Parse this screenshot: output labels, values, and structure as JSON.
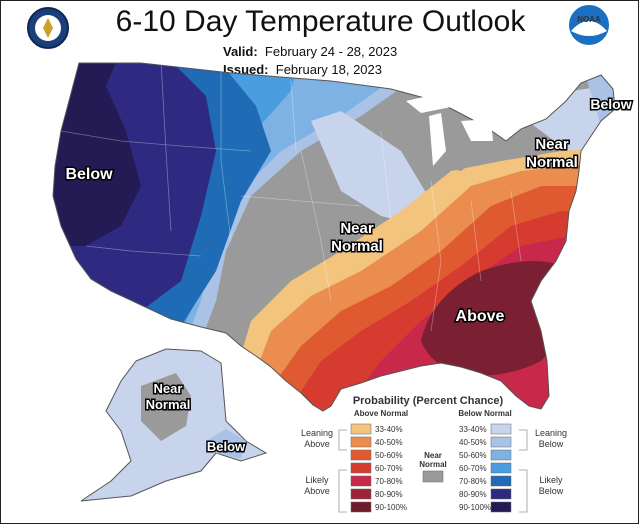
{
  "header": {
    "title": "6-10 Day Temperature Outlook",
    "valid_label": "Valid:",
    "valid_value": "February 24 - 28, 2023",
    "issued_label": "Issued:",
    "issued_value": "February 18, 2023"
  },
  "logos": {
    "left": "doc-seal-icon",
    "right": "noaa-logo-icon",
    "right_text": "NOAA"
  },
  "map_labels": {
    "below_west": "Below",
    "near_normal_central": [
      "Near",
      "Normal"
    ],
    "near_normal_ne": [
      "Near",
      "Normal"
    ],
    "below_ne": "Below",
    "above_se": "Above",
    "near_normal_alaska": [
      "Near",
      "Normal"
    ],
    "below_alaska": "Below"
  },
  "legend": {
    "title": "Probability (Percent Chance)",
    "above_header": "Above Normal",
    "below_header": "Below Normal",
    "near_normal": [
      "Near",
      "Normal"
    ],
    "leaning_above": [
      "Leaning",
      "Above"
    ],
    "likely_above": [
      "Likely",
      "Above"
    ],
    "leaning_below": [
      "Leaning",
      "Below"
    ],
    "likely_below": [
      "Likely",
      "Below"
    ],
    "ranges": [
      "33-40%",
      "40-50%",
      "50-60%",
      "60-70%",
      "70-80%",
      "80-90%",
      "90-100%"
    ],
    "above_colors": [
      "#f2c47e",
      "#ea8d4e",
      "#e05a31",
      "#d63b2f",
      "#c8284a",
      "#9b2335",
      "#6e1c2c"
    ],
    "below_colors": [
      "#c8d4ec",
      "#a9c2e6",
      "#7fb2e4",
      "#4a9ee0",
      "#1f6bb5",
      "#2e2a82",
      "#241b55"
    ],
    "near_color": "#9a9a9a"
  }
}
